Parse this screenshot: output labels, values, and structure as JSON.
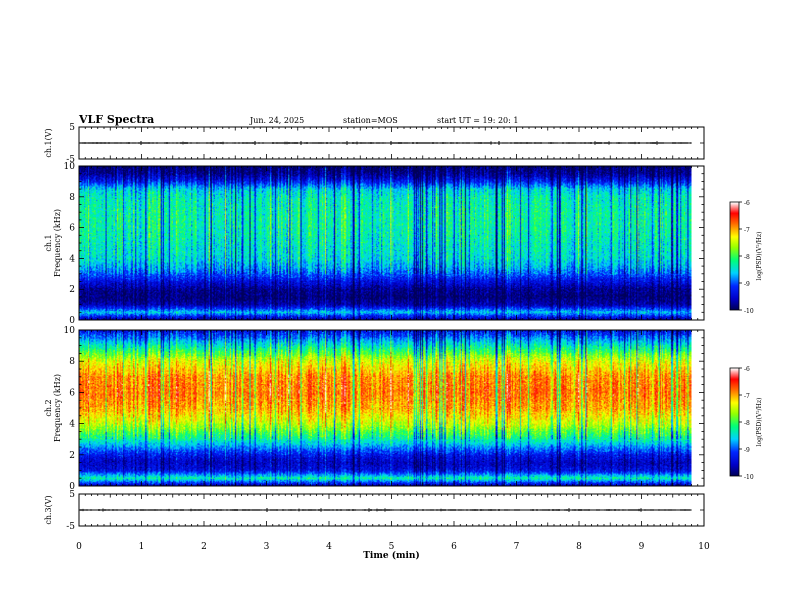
{
  "header": {
    "title": "VLF Spectra",
    "date": "Jun. 24, 2025",
    "station": "station=MOS",
    "start": "start  UT =   19: 20: 1"
  },
  "chart_data": [
    {
      "type": "line",
      "panel": "ch1-waveform",
      "ylabel": "ch.1(V)",
      "ylim": [
        -5,
        5
      ],
      "yticks": [
        "5",
        "-5"
      ],
      "x": [
        0,
        9.8
      ],
      "y": [
        0,
        0
      ]
    },
    {
      "type": "heatmap",
      "panel": "ch1-spectrogram",
      "ylabel_line1": "ch.1",
      "ylabel_line2": "Frequency (kHz)",
      "ylim": [
        0,
        10
      ],
      "yticks": [
        "0",
        "2",
        "4",
        "6",
        "8",
        "10"
      ],
      "xlim": [
        0,
        9.8
      ],
      "colorbar": {
        "label": "log(PSD)(V²/Hz)",
        "range": [
          -10,
          -6
        ],
        "ticks": [
          "-6",
          "-7",
          "-8",
          "-9",
          "-10"
        ],
        "colors": [
          "#000080",
          "#0000ff",
          "#00ffff",
          "#00ff00",
          "#ffff00",
          "#ff0000",
          "#ffffff"
        ]
      },
      "profile_freq_khz": [
        0,
        0.5,
        1,
        1.5,
        2,
        2.5,
        3,
        3.5,
        4,
        5,
        6,
        7,
        8,
        8.5,
        9,
        9.5,
        10
      ],
      "profile_log_psd": [
        -9.8,
        -8.6,
        -9.7,
        -9.9,
        -9.8,
        -9.4,
        -9.0,
        -8.7,
        -8.5,
        -8.4,
        -8.3,
        -8.3,
        -8.4,
        -8.6,
        -9.3,
        -9.8,
        -10
      ]
    },
    {
      "type": "heatmap",
      "panel": "ch2-spectrogram",
      "ylabel_line1": "ch.2",
      "ylabel_line2": "Frequency (kHz)",
      "ylim": [
        0,
        10
      ],
      "yticks": [
        "0",
        "2",
        "4",
        "6",
        "8",
        "10"
      ],
      "xlim": [
        0,
        9.8
      ],
      "colorbar": {
        "label": "log(PSD)(V²/Hz)",
        "range": [
          -10,
          -6
        ],
        "ticks": [
          "-6",
          "-7",
          "-8",
          "-9",
          "-10"
        ],
        "colors": [
          "#000080",
          "#0000ff",
          "#00ffff",
          "#00ff00",
          "#ffff00",
          "#ff0000",
          "#ffffff"
        ]
      },
      "profile_freq_khz": [
        0,
        0.5,
        1,
        1.5,
        2,
        2.5,
        3,
        3.5,
        4,
        5,
        6,
        7,
        8,
        8.5,
        9,
        9.5,
        10
      ],
      "profile_log_psd": [
        -9.7,
        -8.3,
        -9.4,
        -9.6,
        -9.3,
        -8.8,
        -8.3,
        -7.9,
        -7.5,
        -7.0,
        -6.8,
        -6.9,
        -7.4,
        -7.9,
        -8.4,
        -8.9,
        -9.4
      ]
    },
    {
      "type": "line",
      "panel": "ch3-waveform",
      "ylabel": "ch.3(V)",
      "ylim": [
        -5,
        5
      ],
      "yticks": [
        "5",
        "-5"
      ],
      "x": [
        0,
        9.8
      ],
      "y": [
        0,
        0
      ]
    }
  ],
  "xaxis": {
    "label": "Time (min)",
    "xlim": [
      0,
      10
    ],
    "ticks": [
      "0",
      "1",
      "2",
      "3",
      "4",
      "5",
      "6",
      "7",
      "8",
      "9",
      "10"
    ]
  },
  "data_end_min": 9.8
}
